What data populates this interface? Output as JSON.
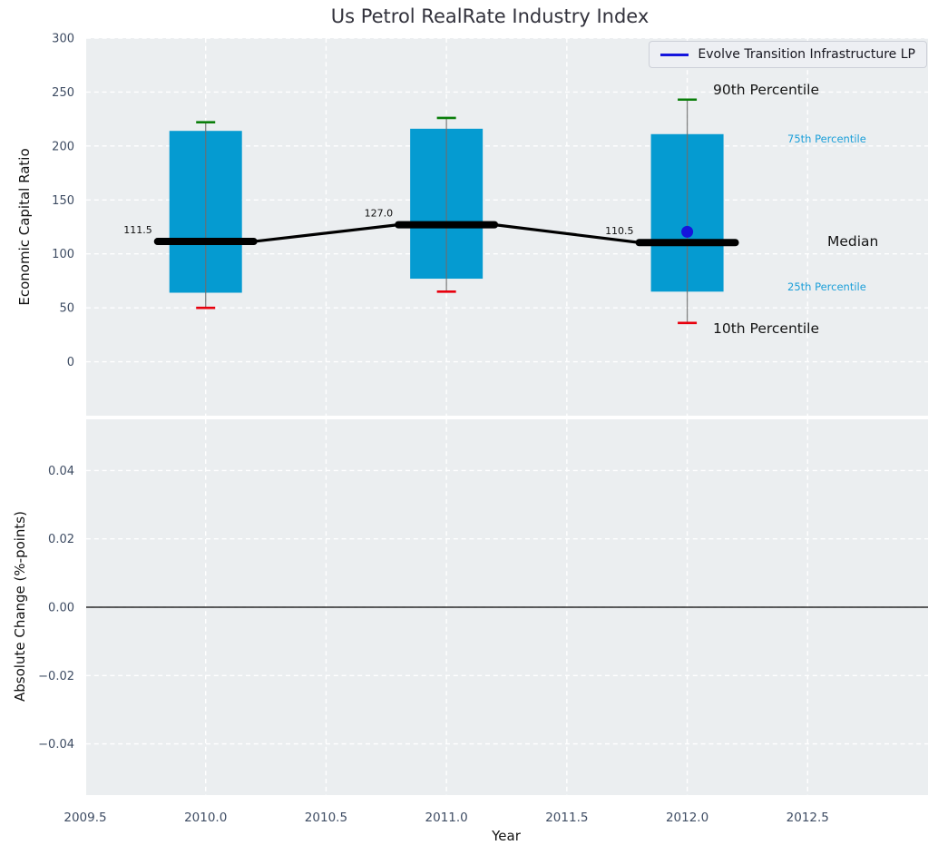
{
  "annotations": {
    "p90": "90th Percentile",
    "p75": "75th Percentile",
    "median": "Median",
    "p25": "25th Percentile",
    "p10": "10th Percentile"
  },
  "colors": {
    "box_fill": "#059bd1",
    "whisker": "#6e6e6e",
    "cap_90": "#0a7e0a",
    "cap_10": "#e8000d",
    "median_line": "#000000",
    "company_point": "#1515dd",
    "accent_label": "#1b9fd9",
    "panel_bg": "#ebeef0",
    "grid": "#ffffff",
    "tick_label": "#3e4c63",
    "zero_line": "#000000"
  },
  "chart_data": [
    {
      "type": "boxplot",
      "title": "Us Petrol RealRate Industry Index",
      "ylabel": "Economic Capital Ratio",
      "ylim": [
        -50,
        300
      ],
      "yticks": [
        0,
        50,
        100,
        150,
        200,
        250,
        300
      ],
      "ytick_labels": [
        "0",
        "50",
        "100",
        "150",
        "200",
        "250",
        "300"
      ],
      "grid": true,
      "legend": [
        "Evolve Transition Infrastructure LP"
      ],
      "legend_position": "upper right",
      "boxes": [
        {
          "year": 2010,
          "p10": 50,
          "p25": 64,
          "median": 111.5,
          "p75": 214,
          "p90": 222,
          "label": "111.5"
        },
        {
          "year": 2011,
          "p10": 65,
          "p25": 77,
          "median": 127.0,
          "p75": 216,
          "p90": 226,
          "label": "127.0"
        },
        {
          "year": 2012,
          "p10": 36,
          "p25": 65,
          "median": 110.5,
          "p75": 211,
          "p90": 243,
          "label": "110.5"
        }
      ],
      "median_series": {
        "x": [
          2010,
          2011,
          2012
        ],
        "y": [
          111.5,
          127.0,
          110.5
        ]
      },
      "company_point": {
        "series": "Evolve Transition Infrastructure LP",
        "x": 2012,
        "y": 120.5
      }
    },
    {
      "type": "line",
      "ylabel": "Absolute Change (%-points)",
      "xlabel": "Year",
      "ylim": [
        -0.055,
        0.055
      ],
      "yticks": [
        0.04,
        0.02,
        0.0,
        -0.02,
        -0.04
      ],
      "ytick_labels": [
        "0.04",
        "0.02",
        "0.00",
        "−0.02",
        "−0.04"
      ],
      "xlim": [
        2009.5,
        2013.0
      ],
      "xticks": [
        2009.5,
        2010.0,
        2010.5,
        2011.0,
        2011.5,
        2012.0,
        2012.5
      ],
      "xtick_labels": [
        "2009.5",
        "2010.0",
        "2010.5",
        "2011.0",
        "2011.5",
        "2012.0",
        "2012.5"
      ],
      "zero_line": 0.0,
      "series": []
    }
  ]
}
